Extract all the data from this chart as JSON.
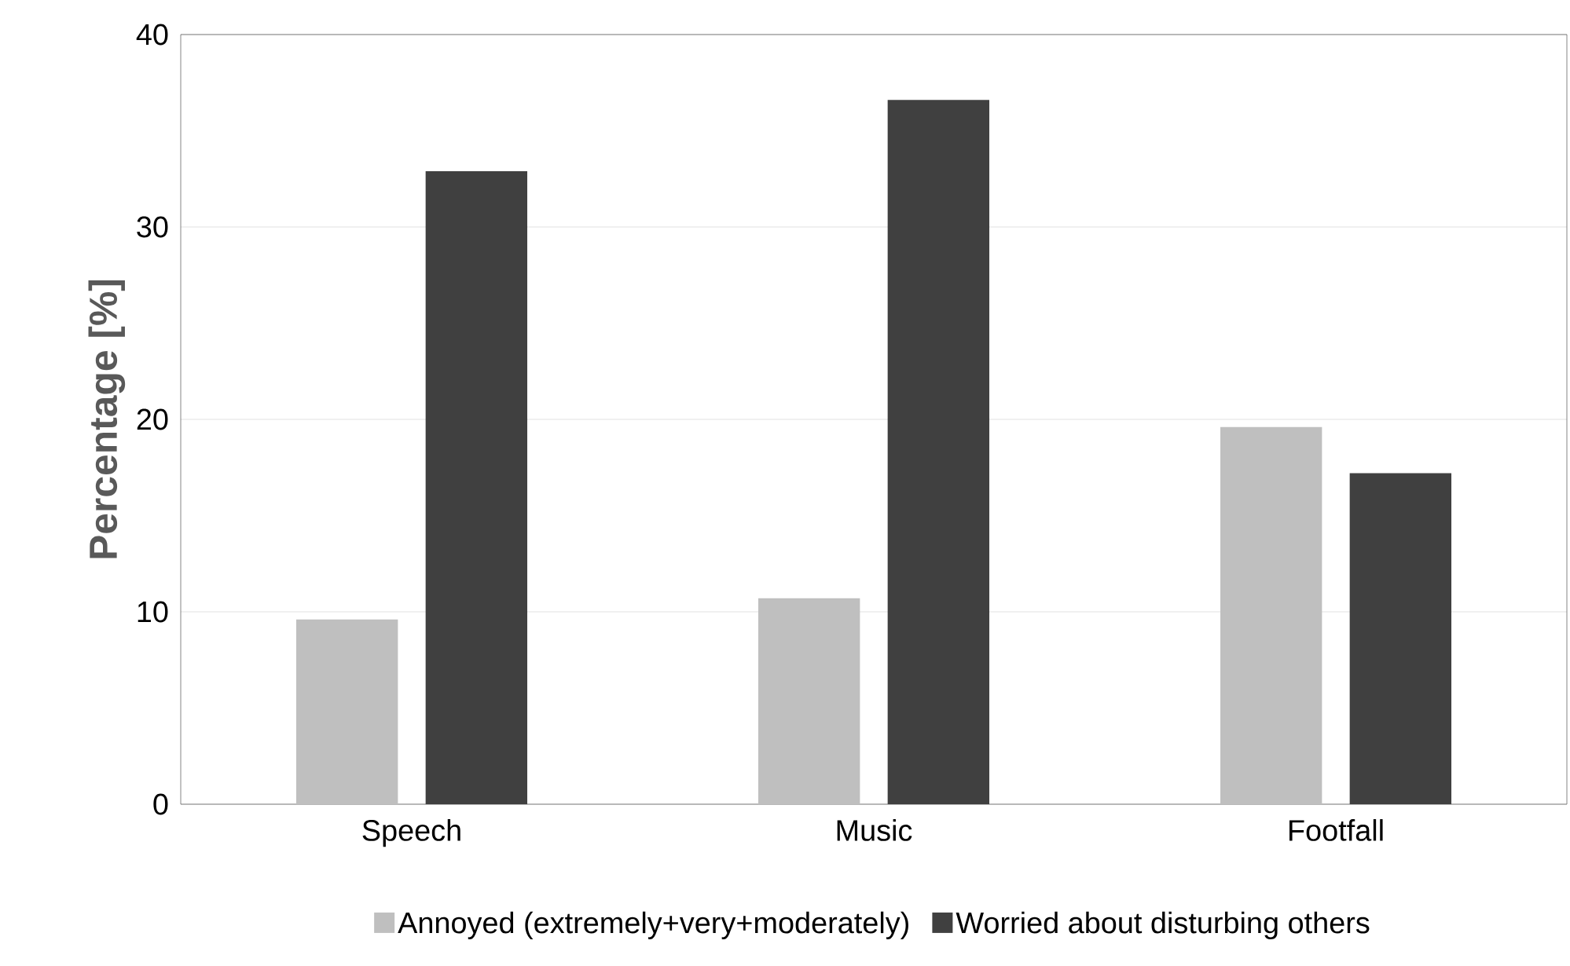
{
  "chart_data": {
    "type": "bar",
    "ylabel": "Percentage [%]",
    "categories": [
      "Speech",
      "Music",
      "Footfall"
    ],
    "series": [
      {
        "name": "Annoyed (extremely+very+moderately)",
        "color": "#bfbfbf",
        "values": [
          9.6,
          10.7,
          19.6
        ]
      },
      {
        "name": "Worried about disturbing others",
        "color": "#404040",
        "values": [
          32.9,
          36.6,
          17.2
        ]
      }
    ],
    "ylim": [
      0,
      40
    ],
    "yticks": [
      0,
      10,
      20,
      30,
      40
    ],
    "grid": "y",
    "legend": "bottom"
  }
}
